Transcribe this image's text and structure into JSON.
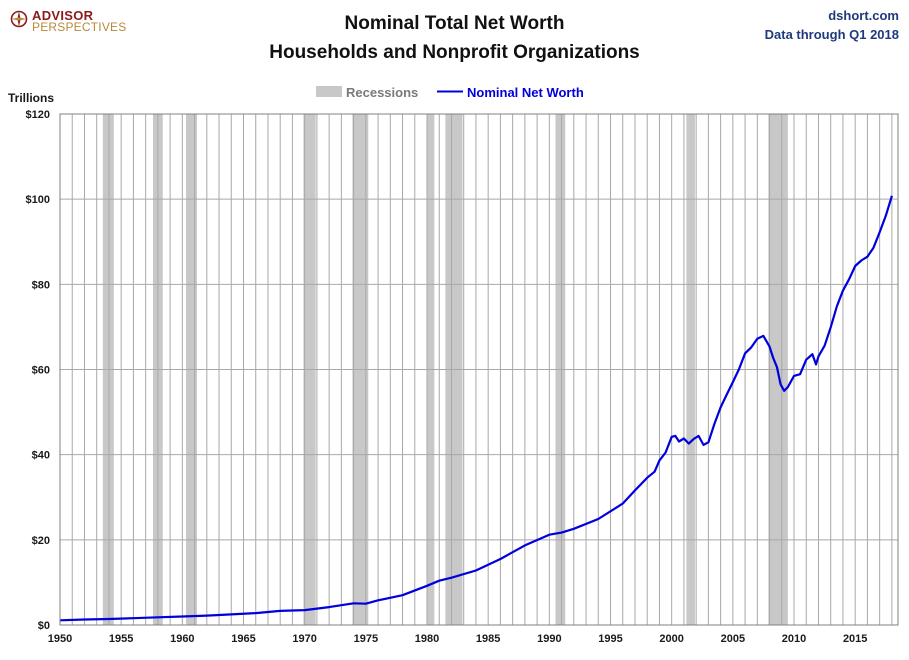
{
  "brand": {
    "line1": "ADVISOR",
    "line2": "PERSPECTIVES"
  },
  "source": {
    "site": "dshort.com",
    "note": "Data through Q1 2018"
  },
  "chart_data": {
    "type": "line",
    "title": "Nominal Total Net Worth",
    "subtitle": "Households and Nonprofit Organizations",
    "ylabel": "Trillions",
    "xlabel": "",
    "xlim": [
      1950,
      2018.5
    ],
    "ylim": [
      0,
      120
    ],
    "x_ticks": [
      1950,
      1955,
      1960,
      1965,
      1970,
      1975,
      1980,
      1985,
      1990,
      1995,
      2000,
      2005,
      2010,
      2015
    ],
    "x_tick_labels": [
      "1950",
      "1955",
      "1960",
      "1965",
      "1970",
      "1975",
      "1980",
      "1985",
      "1990",
      "1995",
      "2000",
      "2005",
      "2010",
      "2015"
    ],
    "y_ticks": [
      0,
      20,
      40,
      60,
      80,
      100,
      120
    ],
    "y_tick_labels": [
      "$0",
      "$20",
      "$40",
      "$60",
      "$80",
      "$100",
      "$120"
    ],
    "grid": true,
    "legend": {
      "placement": "top-center",
      "recessions_label": "Recessions",
      "series_label": "Nominal Net Worth"
    },
    "colors": {
      "line": "#0000dd",
      "recession": "#c8c8c8",
      "grid": "#a8a8a8",
      "plot_bg": "#ffffff"
    },
    "recessions": [
      [
        1953.5,
        1954.4
      ],
      [
        1957.6,
        1958.4
      ],
      [
        1960.3,
        1961.2
      ],
      [
        1969.9,
        1970.9
      ],
      [
        1973.9,
        1975.2
      ],
      [
        1980.0,
        1980.6
      ],
      [
        1981.5,
        1982.9
      ],
      [
        1990.5,
        1991.3
      ],
      [
        2001.2,
        2001.9
      ],
      [
        2007.9,
        2009.5
      ]
    ],
    "series": [
      {
        "name": "Nominal Net Worth",
        "x": [
          1950,
          1952,
          1954,
          1956,
          1958,
          1960,
          1962,
          1964,
          1966,
          1968,
          1970,
          1972,
          1974,
          1975,
          1976,
          1978,
          1980,
          1981,
          1982,
          1984,
          1986,
          1988,
          1990,
          1991,
          1992,
          1994,
          1996,
          1997,
          1998,
          1998.6,
          1999,
          1999.5,
          2000,
          2000.3,
          2000.6,
          2001,
          2001.4,
          2001.8,
          2002.2,
          2002.6,
          2003,
          2003.5,
          2004,
          2004.5,
          2005,
          2005.5,
          2006,
          2006.5,
          2007,
          2007.5,
          2008,
          2008.3,
          2008.6,
          2008.9,
          2009.2,
          2009.5,
          2010,
          2010.5,
          2011,
          2011.5,
          2011.8,
          2012,
          2012.5,
          2013,
          2013.5,
          2014,
          2014.5,
          2015,
          2015.5,
          2016,
          2016.5,
          2017,
          2017.5,
          2018
        ],
        "values": [
          1.1,
          1.3,
          1.4,
          1.6,
          1.8,
          2.0,
          2.2,
          2.5,
          2.8,
          3.3,
          3.5,
          4.2,
          5.1,
          5.0,
          5.8,
          7.0,
          9.2,
          10.4,
          11.1,
          12.8,
          15.5,
          18.7,
          21.2,
          21.7,
          22.6,
          24.9,
          28.5,
          31.6,
          34.6,
          36.0,
          38.6,
          40.5,
          44.2,
          44.4,
          43.1,
          43.8,
          42.6,
          43.7,
          44.4,
          42.3,
          42.9,
          47.3,
          51.1,
          54.1,
          57.0,
          60.1,
          63.8,
          65.2,
          67.2,
          67.9,
          65.4,
          62.7,
          60.6,
          56.5,
          55.0,
          55.9,
          58.5,
          58.9,
          62.3,
          63.6,
          61.2,
          63.1,
          65.6,
          69.9,
          74.8,
          78.5,
          81.2,
          84.3,
          85.6,
          86.5,
          88.6,
          92.2,
          96.1,
          100.8
        ]
      }
    ]
  }
}
